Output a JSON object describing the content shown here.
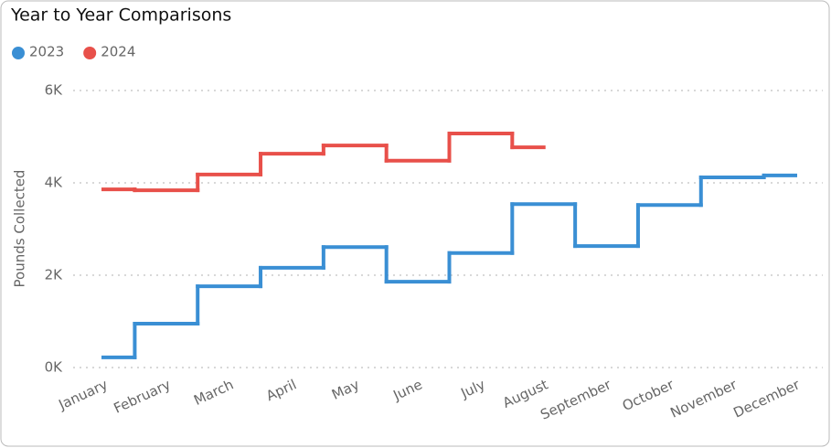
{
  "chart_data": {
    "type": "step",
    "title": "Year to Year Comparisons",
    "y_label": "Pounds Collected",
    "categories": [
      "January",
      "February",
      "March",
      "April",
      "May",
      "June",
      "July",
      "August",
      "September",
      "October",
      "November",
      "December"
    ],
    "series": [
      {
        "name": "2023",
        "color": "#3a8fd4",
        "values": [
          220,
          950,
          1760,
          2160,
          2610,
          1860,
          2480,
          3540,
          2630,
          3520,
          4120,
          4160
        ]
      },
      {
        "name": "2024",
        "color": "#e8504a",
        "values": [
          3860,
          3840,
          4180,
          4630,
          4810,
          4480,
          5070,
          4770,
          null,
          null,
          null,
          null
        ]
      }
    ],
    "ylim": [
      0,
      6000
    ],
    "yticks": [
      {
        "value": 0,
        "label": "0K"
      },
      {
        "value": 2000,
        "label": "2K"
      },
      {
        "value": 4000,
        "label": "4K"
      },
      {
        "value": 6000,
        "label": "6K"
      }
    ],
    "grid": true
  }
}
